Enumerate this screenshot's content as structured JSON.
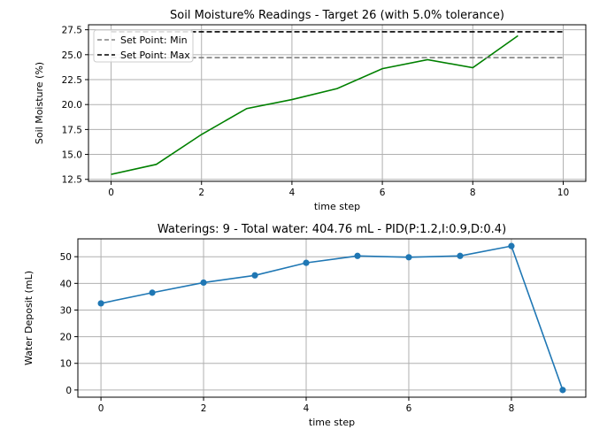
{
  "chart_data": [
    {
      "type": "line",
      "title": "Soil Moisture% Readings - Target 26 (with 5.0% tolerance)",
      "xlabel": "time step",
      "ylabel": "Soil Moisture (%)",
      "xlim": [
        -0.5,
        10.5
      ],
      "ylim": [
        12.3,
        28.0
      ],
      "grid": true,
      "legend_position": "top-left",
      "x_ticks": [
        0,
        2,
        4,
        6,
        8,
        10
      ],
      "y_ticks": [
        12.5,
        15.0,
        17.5,
        20.0,
        22.5,
        25.0,
        27.5
      ],
      "y_tick_labels": [
        "12.5",
        "15.0",
        "17.5",
        "20.0",
        "22.5",
        "25.0",
        "27.5"
      ],
      "series": [
        {
          "x": [
            0,
            1,
            2,
            3,
            4,
            5,
            6,
            7,
            8,
            9
          ],
          "values": [
            13.0,
            14.0,
            17.0,
            19.6,
            20.5,
            21.6,
            23.6,
            24.5,
            23.7,
            26.9
          ],
          "color": "#008000",
          "style": "solid"
        },
        {
          "name": "Set Point: Min",
          "x": [
            0,
            10
          ],
          "values": [
            24.7,
            24.7
          ],
          "color": "#808080",
          "style": "dashed"
        },
        {
          "name": "Set Point: Max",
          "x": [
            0,
            10
          ],
          "values": [
            27.3,
            27.3
          ],
          "color": "#000000",
          "style": "dashed"
        }
      ]
    },
    {
      "type": "line",
      "title": "Waterings: 9 - Total water: 404.76 mL - PID(P:1.2,I:0.9,D:0.4)",
      "xlabel": "time step",
      "ylabel": "Water Deposit (mL)",
      "xlim": [
        -0.45,
        9.45
      ],
      "ylim": [
        -2.7,
        56.7
      ],
      "grid": true,
      "x_ticks": [
        0,
        2,
        4,
        6,
        8
      ],
      "y_ticks": [
        0,
        10,
        20,
        30,
        40,
        50
      ],
      "y_tick_labels": [
        "0",
        "10",
        "20",
        "30",
        "40",
        "50"
      ],
      "series": [
        {
          "x": [
            0,
            1,
            2,
            3,
            4,
            5,
            6,
            7,
            8,
            9
          ],
          "values": [
            32.5,
            36.5,
            40.3,
            43.0,
            47.7,
            50.3,
            49.8,
            50.3,
            54.0,
            0.0
          ],
          "color": "#1f77b4",
          "style": "solid",
          "markers": true
        }
      ]
    }
  ]
}
